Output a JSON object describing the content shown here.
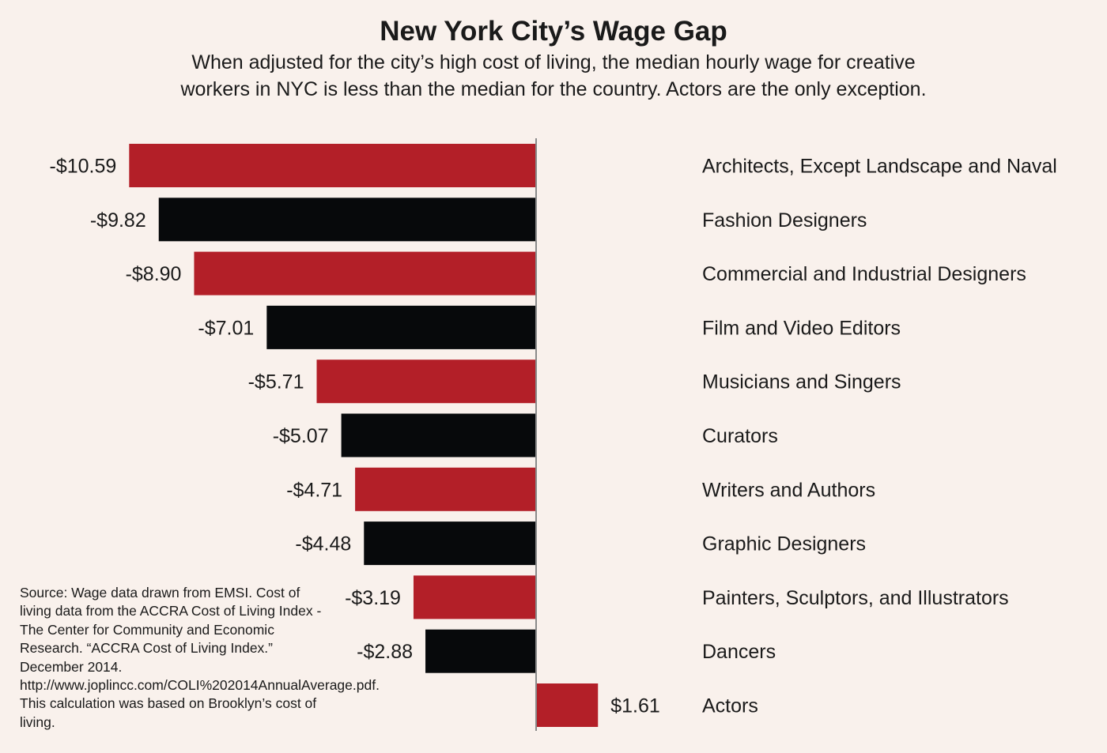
{
  "chart_data": {
    "type": "bar",
    "orientation": "horizontal",
    "title": "New York City’s Wage Gap",
    "subtitle": "When adjusted for the city’s high cost of living, the median hourly wage for creative workers in NYC is less than the median for the country. Actors are the only exception.",
    "categories": [
      "Architects, Except Landscape and Naval",
      "Fashion Designers",
      "Commercial and Industrial Designers",
      "Film and Video Editors",
      "Musicians and Singers",
      "Curators",
      "Writers and Authors",
      "Graphic Designers",
      "Painters, Sculptors, and Illustrators",
      "Dancers",
      "Actors"
    ],
    "values": [
      -10.59,
      -9.82,
      -8.9,
      -7.01,
      -5.71,
      -5.07,
      -4.71,
      -4.48,
      -3.19,
      -2.88,
      1.61
    ],
    "data_labels": [
      "-$10.59",
      "-$9.82",
      "-$8.90",
      "-$7.01",
      "-$5.71",
      "-$5.07",
      "-$4.71",
      "-$4.48",
      "-$3.19",
      "-$2.88",
      "$1.61"
    ],
    "bar_colors": [
      "#b31f28",
      "#07090b",
      "#b31f28",
      "#07090b",
      "#b31f28",
      "#07090b",
      "#b31f28",
      "#07090b",
      "#b31f28",
      "#07090b",
      "#b31f28"
    ],
    "xlim": [
      -10.59,
      1.61
    ],
    "grid": false,
    "xlabel": "",
    "ylabel": "",
    "source": "Source: Wage data drawn from EMSI. Cost of living data from the ACCRA Cost of Living Index - The Center for Community and Economic Research. “ACCRA Cost of Living Index.” December 2014.  http://www.joplincc.com/COLI%202014AnnualAverage.pdf. This calculation was based on Brooklyn’s cost of living."
  },
  "colors": {
    "background": "#f9f1ec",
    "red": "#b31f28",
    "black": "#07090b",
    "axis": "#8a8a8a"
  }
}
